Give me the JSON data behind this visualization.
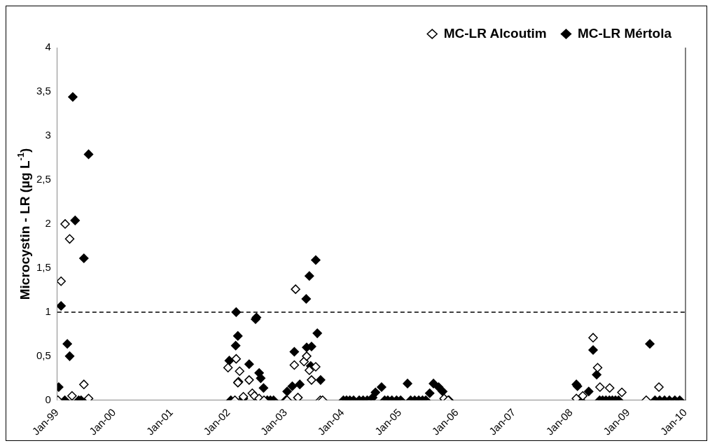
{
  "chart_data": {
    "type": "scatter",
    "ylabel": "Microcystin - LR (µg L$^{-1}$)",
    "ylim": [
      0,
      4
    ],
    "yticks": [
      0,
      {
        "value": 0.5,
        "label": "0,5"
      },
      1,
      {
        "value": 1.5,
        "label": "1,5"
      },
      2,
      {
        "value": 2.5,
        "label": "2,5"
      },
      3,
      {
        "value": 3.5,
        "label": "3,5"
      },
      4
    ],
    "xlim": [
      "1999-01",
      "2010-01"
    ],
    "xticks": [
      {
        "value": "1999-01",
        "label": "Jan-99"
      },
      {
        "value": "2000-01",
        "label": "Jan-00"
      },
      {
        "value": "2001-01",
        "label": "Jan-01"
      },
      {
        "value": "2002-01",
        "label": "Jan-02"
      },
      {
        "value": "2003-01",
        "label": "Jan-03"
      },
      {
        "value": "2004-01",
        "label": "Jan-04"
      },
      {
        "value": "2005-01",
        "label": "Jan-05"
      },
      {
        "value": "2006-01",
        "label": "Jan-06"
      },
      {
        "value": "2007-01",
        "label": "Jan-07"
      },
      {
        "value": "2008-01",
        "label": "Jan-08"
      },
      {
        "value": "2009-01",
        "label": "Jan-09"
      },
      {
        "value": "2010-01",
        "label": "Jan-10"
      }
    ],
    "marker": "diamond",
    "legend": "top right",
    "grid": false,
    "ref_lines": [
      {
        "axis": "y",
        "value": 1,
        "line_style": "dashed",
        "color": "#000000"
      }
    ],
    "series": [
      {
        "name": "MC-LR Alcoutim",
        "color": "#ffffff",
        "x": [
          "1999-01-05",
          "1999-01-25",
          "1999-02-20",
          "1999-03-21",
          "1999-04-05",
          "1999-06-20",
          "1999-07-20",
          "2001-12-28",
          "2002-02-10",
          "2002-02-18",
          "2002-03-01",
          "2002-03-12",
          "2002-04-05",
          "2002-05-12",
          "2002-05-22",
          "2002-06-01",
          "2002-06-15",
          "2002-07-15",
          "2002-08-15",
          "2003-01-10",
          "2003-02-25",
          "2003-03-05",
          "2003-03-20",
          "2003-04-28",
          "2003-05-15",
          "2003-06-01",
          "2003-06-15",
          "2003-07-12",
          "2003-08-10",
          "2003-08-25",
          "2005-09-20",
          "2005-10-10",
          "2005-11-05",
          "2008-01-20",
          "2008-02-03",
          "2008-03-15",
          "2008-05-20",
          "2008-06-18",
          "2008-07-03",
          "2008-09-03",
          "2008-11-20",
          "2009-04-25",
          "2009-07-15"
        ],
        "values": [
          0,
          1.35,
          2.0,
          1.83,
          0.05,
          0.18,
          0.02,
          0.37,
          0,
          0.47,
          0.2,
          0.33,
          0.04,
          0.23,
          null,
          0.08,
          0.05,
          0.02,
          0,
          0,
          0.4,
          1.26,
          0.03,
          0.44,
          0.5,
          0.34,
          0.23,
          0.38,
          0,
          0,
          null,
          0.02,
          0,
          null,
          0.02,
          0.05,
          0.71,
          0.37,
          0.15,
          0.14,
          0.09,
          0,
          0.15
        ]
      },
      {
        "name": "MC-LR Mértola",
        "color": "#000000",
        "x": [
          "1999-01-10",
          "1999-01-25",
          "1999-02-18",
          "1999-03-06",
          "1999-03-21",
          "1999-04-10",
          "1999-04-25",
          "1999-05-18",
          "1999-06-02",
          "1999-06-20",
          "1999-07-20",
          "2002-01-05",
          "2002-01-15",
          "2002-02-15",
          "2002-02-18",
          "2002-03-01",
          "2002-03-05",
          "2002-04-05",
          "2002-05-12",
          "2002-06-22",
          "2002-06-28",
          "2002-07-15",
          "2002-07-25",
          "2002-08-12",
          "2002-09-05",
          "2002-09-25",
          "2002-10-15",
          "2003-01-01",
          "2003-01-10",
          "2003-02-12",
          "2003-02-25",
          "2003-03-20",
          "2003-04-01",
          "2003-05-12",
          "2003-05-15",
          "2003-06-01",
          "2003-06-10",
          "2003-06-15",
          "2003-07-12",
          "2003-07-22",
          "2003-08-12",
          "2004-01-05",
          "2004-01-25",
          "2004-02-15",
          "2004-03-10",
          "2004-04-15",
          "2004-05-10",
          "2004-06-05",
          "2004-07-10",
          "2004-07-28",
          "2004-09-05",
          "2004-09-25",
          "2004-10-15",
          "2004-11-10",
          "2004-12-10",
          "2005-01-05",
          "2005-02-18",
          "2005-03-10",
          "2005-04-05",
          "2005-05-01",
          "2005-05-25",
          "2005-06-15",
          "2005-07-10",
          "2005-08-03",
          "2005-09-05",
          "2005-10-01",
          "2005-10-15",
          "2005-11-10",
          "2008-02-03",
          "2008-02-10",
          "2008-03-01",
          "2008-04-22",
          "2008-05-20",
          "2008-06-12",
          "2008-07-01",
          "2008-07-20",
          "2008-08-10",
          "2008-09-01",
          "2008-09-20",
          "2008-10-10",
          "2008-10-30",
          "2009-05-18",
          "2009-06-20",
          "2009-07-20",
          "2009-08-20",
          "2009-09-20",
          "2009-10-25",
          "2009-11-25"
        ],
        "values": [
          0.15,
          1.07,
          0,
          0.64,
          0.5,
          3.44,
          2.04,
          0,
          0,
          1.61,
          2.79,
          0.45,
          0,
          0.62,
          1.0,
          0.73,
          0.21,
          0.02,
          0.41,
          0.92,
          0.94,
          0.31,
          0.25,
          0.14,
          0,
          0,
          0,
          0,
          0.1,
          0.16,
          0.55,
          0.03,
          0.18,
          1.15,
          0.6,
          1.41,
          0.39,
          0.61,
          1.59,
          0.76,
          0.23,
          0,
          0,
          0,
          0,
          0,
          0,
          0,
          0.03,
          0.09,
          0.15,
          0,
          0,
          0,
          0,
          0,
          0.19,
          0,
          0,
          0,
          0,
          0,
          0.08,
          0.19,
          0.15,
          0.1,
          0,
          0,
          0.18,
          0.16,
          0,
          0.1,
          0.57,
          0.29,
          0,
          0,
          0,
          0,
          0,
          0,
          0,
          0.64,
          0,
          0,
          0,
          0,
          0,
          0
        ]
      }
    ]
  }
}
